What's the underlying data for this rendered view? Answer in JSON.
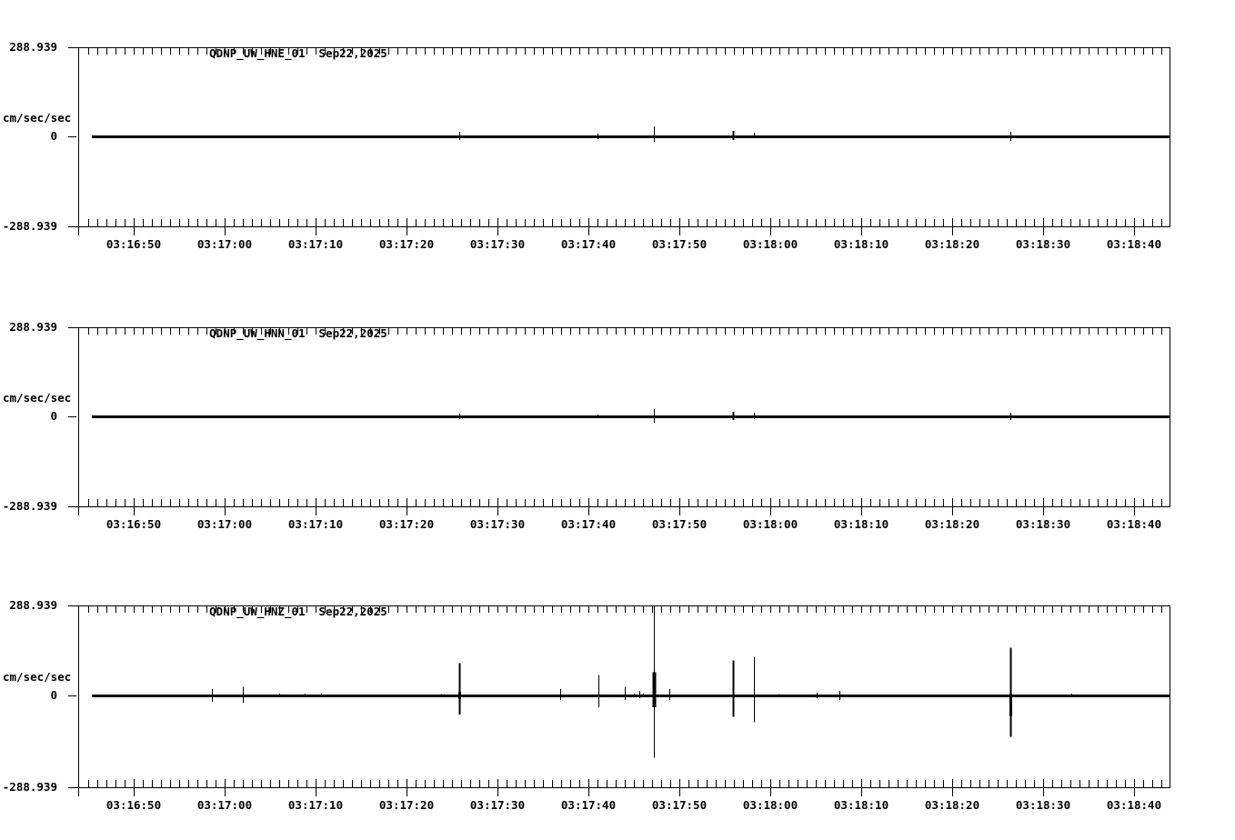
{
  "page": {
    "background": "#ffffff",
    "line_color": "#000000"
  },
  "chart_data": {
    "type": "line",
    "description": "Three stacked seismic acceleration traces (flat baseline with impulsive spikes)",
    "x_axis": {
      "tick_labels": [
        "03:16:50",
        "03:17:00",
        "03:17:10",
        "03:17:20",
        "03:17:30",
        "03:17:40",
        "03:17:50",
        "03:18:00",
        "03:18:10",
        "03:18:20",
        "03:18:30",
        "03:18:40"
      ],
      "minor_tick_seconds": 1,
      "major_tick_seconds": 10,
      "start_time": "03:16:44",
      "end_time": "03:18:44"
    },
    "y_axis": {
      "limits": [
        -288.939,
        288.939
      ],
      "max_label": "288.939",
      "zero_label": "0",
      "min_label": "-288.939",
      "units_label": "cm/sec/sec"
    },
    "series": [
      {
        "name": "QDNP_UW_HNE_01",
        "date_label": "Sep22,2025",
        "baseline": 0,
        "spikes": [
          {
            "time": "03:17:25.8",
            "peak": 15,
            "trough": -12
          },
          {
            "time": "03:17:41.0",
            "peak": 9,
            "trough": -9
          },
          {
            "time": "03:17:47.2",
            "peak": 32,
            "trough": -18
          },
          {
            "time": "03:17:55.9",
            "peak": 18,
            "trough": -12,
            "width": 2
          },
          {
            "time": "03:17:58.2",
            "peak": 12,
            "trough": -6
          },
          {
            "time": "03:18:26.4",
            "peak": 15,
            "trough": -15
          }
        ]
      },
      {
        "name": "QDNP_UW_HNN_01",
        "date_label": "Sep22,2025",
        "baseline": 0,
        "spikes": [
          {
            "time": "03:17:25.8",
            "peak": 9,
            "trough": -9
          },
          {
            "time": "03:17:41.0",
            "peak": 6,
            "trough": -6
          },
          {
            "time": "03:17:47.2",
            "peak": 24,
            "trough": -21
          },
          {
            "time": "03:17:55.9",
            "peak": 15,
            "trough": -12,
            "width": 2
          },
          {
            "time": "03:17:58.2",
            "peak": 12,
            "trough": -9
          },
          {
            "time": "03:18:26.4",
            "peak": 12,
            "trough": -12
          }
        ]
      },
      {
        "name": "QDNP_UW_HNZ_01",
        "date_label": "Sep22,2025",
        "baseline": 0,
        "spikes": [
          {
            "time": "03:16:50.3",
            "peak": 3,
            "trough": -3
          },
          {
            "time": "03:16:58.6",
            "peak": 21,
            "trough": -21
          },
          {
            "time": "03:17:02.0",
            "peak": 27,
            "trough": -24
          },
          {
            "time": "03:17:06.0",
            "peak": 6,
            "trough": -6
          },
          {
            "time": "03:17:08.8",
            "peak": 6,
            "trough": -6
          },
          {
            "time": "03:17:10.6",
            "peak": 6,
            "trough": -6
          },
          {
            "time": "03:17:23.8",
            "peak": 5,
            "trough": -5
          },
          {
            "time": "03:17:25.8",
            "peak": 103,
            "trough": -62,
            "width": 2,
            "thick": {
              "peak": 12,
              "trough": -12,
              "width": 3
            }
          },
          {
            "time": "03:17:36.9",
            "peak": 21,
            "trough": -15
          },
          {
            "time": "03:17:41.1",
            "peak": 65,
            "trough": -38
          },
          {
            "time": "03:17:44.0",
            "peak": 27,
            "trough": -15
          },
          {
            "time": "03:17:45.0",
            "peak": 6,
            "trough": -6
          },
          {
            "time": "03:17:45.6",
            "peak": 15,
            "trough": -9
          },
          {
            "time": "03:17:46.0",
            "peak": 6,
            "trough": -6
          },
          {
            "time": "03:17:47.2",
            "peak": 289,
            "trough": -200,
            "thick": {
              "peak": 74,
              "trough": -38,
              "width": 4
            }
          },
          {
            "time": "03:17:48.9",
            "peak": 21,
            "trough": -15
          },
          {
            "time": "03:17:55.9",
            "peak": 112,
            "trough": -68,
            "width": 2
          },
          {
            "time": "03:17:58.2",
            "peak": 124,
            "trough": -86
          },
          {
            "time": "03:18:00.3",
            "peak": 3,
            "trough": -3
          },
          {
            "time": "03:18:00.9",
            "peak": 4,
            "trough": -4
          },
          {
            "time": "03:18:05.1",
            "peak": 9,
            "trough": -9
          },
          {
            "time": "03:18:07.6",
            "peak": 15,
            "trough": -15
          },
          {
            "time": "03:18:26.4",
            "peak": 153,
            "trough": -133,
            "width": 2,
            "thick": {
              "peak": 6,
              "trough": -65,
              "width": 3
            }
          },
          {
            "time": "03:18:33.1",
            "peak": 6,
            "trough": -6
          }
        ]
      }
    ]
  }
}
